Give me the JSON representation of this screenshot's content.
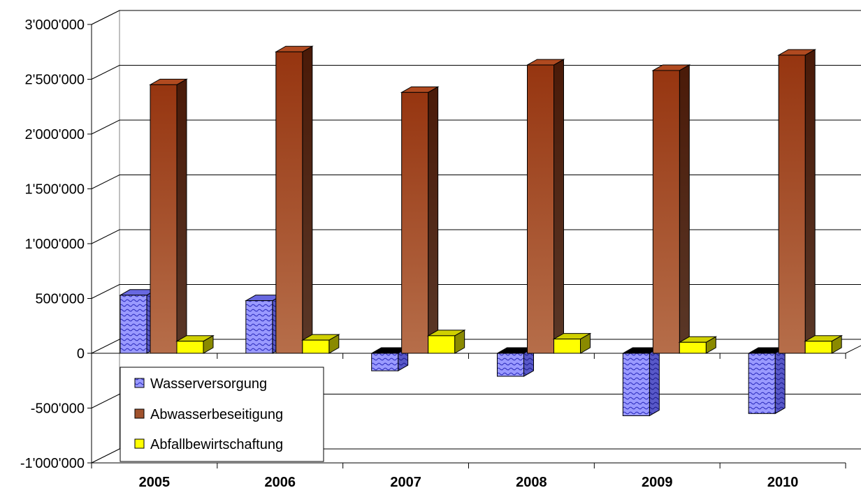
{
  "chart_data": {
    "type": "bar",
    "style": "3d-clustered-column",
    "categories": [
      "2005",
      "2006",
      "2007",
      "2008",
      "2009",
      "2010"
    ],
    "series": [
      {
        "name": "Wasserversorgung",
        "color": "#8080ff",
        "pattern": "wave",
        "values": [
          530000,
          480000,
          -160000,
          -210000,
          -570000,
          -550000
        ]
      },
      {
        "name": "Abwasserbeseitigung",
        "color": "#a0522d",
        "values": [
          2450000,
          2750000,
          2380000,
          2630000,
          2580000,
          2720000
        ]
      },
      {
        "name": "Abfallbewirtschaftung",
        "color": "#ffff00",
        "values": [
          110000,
          120000,
          160000,
          130000,
          100000,
          110000
        ]
      }
    ],
    "ylim": [
      -1000000,
      3000000
    ],
    "yticks": [
      {
        "value": 3000000,
        "label": "3'000'000"
      },
      {
        "value": 2500000,
        "label": "2'500'000"
      },
      {
        "value": 2000000,
        "label": "2'000'000"
      },
      {
        "value": 1500000,
        "label": "1'500'000"
      },
      {
        "value": 1000000,
        "label": "1'000'000"
      },
      {
        "value": 500000,
        "label": "500'000"
      },
      {
        "value": 0,
        "label": "0"
      },
      {
        "value": -500000,
        "label": "-500'000"
      },
      {
        "value": -1000000,
        "label": "-1'000'000"
      }
    ],
    "grid": true,
    "legend": "bottom-left",
    "title": "",
    "xlabel": "",
    "ylabel": ""
  }
}
